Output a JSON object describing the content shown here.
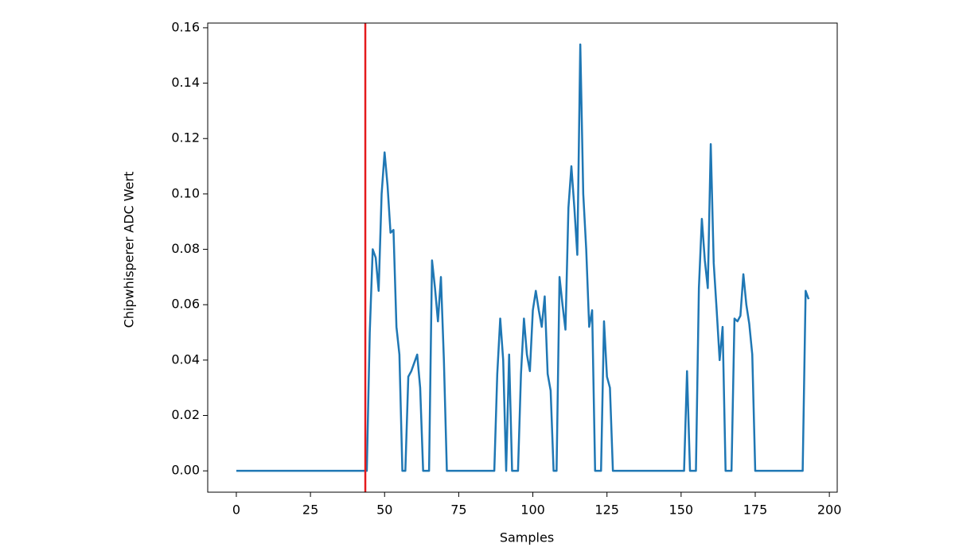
{
  "chart_data": {
    "type": "line",
    "xlabel": "Samples",
    "ylabel": "Chipwhisperer ADC Wert",
    "x": [
      0,
      1,
      2,
      3,
      4,
      5,
      6,
      7,
      8,
      9,
      10,
      11,
      12,
      13,
      14,
      15,
      16,
      17,
      18,
      19,
      20,
      21,
      22,
      23,
      24,
      25,
      26,
      27,
      28,
      29,
      30,
      31,
      32,
      33,
      34,
      35,
      36,
      37,
      38,
      39,
      40,
      41,
      42,
      43,
      44,
      45,
      46,
      47,
      48,
      49,
      50,
      51,
      52,
      53,
      54,
      55,
      56,
      57,
      58,
      59,
      60,
      61,
      62,
      63,
      64,
      65,
      66,
      67,
      68,
      69,
      70,
      71,
      72,
      73,
      74,
      75,
      76,
      77,
      78,
      79,
      80,
      81,
      82,
      83,
      84,
      85,
      86,
      87,
      88,
      89,
      90,
      91,
      92,
      93,
      94,
      95,
      96,
      97,
      98,
      99,
      100,
      101,
      102,
      103,
      104,
      105,
      106,
      107,
      108,
      109,
      110,
      111,
      112,
      113,
      114,
      115,
      116,
      117,
      118,
      119,
      120,
      121,
      122,
      123,
      124,
      125,
      126,
      127,
      128,
      129,
      130,
      131,
      132,
      133,
      134,
      135,
      136,
      137,
      138,
      139,
      140,
      141,
      142,
      143,
      144,
      145,
      146,
      147,
      148,
      149,
      150,
      151,
      152,
      153,
      154,
      155,
      156,
      157,
      158,
      159,
      160,
      161,
      162,
      163,
      164,
      165,
      166,
      167,
      168,
      169,
      170,
      171,
      172,
      173,
      174,
      175,
      176,
      177,
      178,
      179,
      180,
      181,
      182,
      183,
      184,
      185,
      186,
      187,
      188,
      189,
      190,
      191,
      192,
      193
    ],
    "series": [
      {
        "color": "#1f77b4",
        "values": [
          0,
          0,
          0,
          0,
          0,
          0,
          0,
          0,
          0,
          0,
          0,
          0,
          0,
          0,
          0,
          0,
          0,
          0,
          0,
          0,
          0,
          0,
          0,
          0,
          0,
          0,
          0,
          0,
          0,
          0,
          0,
          0,
          0,
          0,
          0,
          0,
          0,
          0,
          0,
          0,
          0,
          0,
          0,
          0,
          0,
          0.05,
          0.08,
          0.077,
          0.065,
          0.1,
          0.115,
          0.103,
          0.086,
          0.087,
          0.052,
          0.042,
          0,
          0,
          0.034,
          0.036,
          0.039,
          0.042,
          0.03,
          0,
          0,
          0,
          0.076,
          0.066,
          0.054,
          0.07,
          0.04,
          0,
          0,
          0,
          0,
          0,
          0,
          0,
          0,
          0,
          0,
          0,
          0,
          0,
          0,
          0,
          0,
          0,
          0.035,
          0.055,
          0.04,
          0,
          0.042,
          0,
          0,
          0,
          0.035,
          0.055,
          0.042,
          0.036,
          0.058,
          0.065,
          0.058,
          0.052,
          0.063,
          0.035,
          0.029,
          0,
          0,
          0.07,
          0.06,
          0.051,
          0.095,
          0.11,
          0.095,
          0.078,
          0.154,
          0.1,
          0.08,
          0.052,
          0.058,
          0,
          0,
          0,
          0.054,
          0.034,
          0.03,
          0,
          0,
          0,
          0,
          0,
          0,
          0,
          0,
          0,
          0,
          0,
          0,
          0,
          0,
          0,
          0,
          0,
          0,
          0,
          0,
          0,
          0,
          0,
          0,
          0,
          0.036,
          0,
          0,
          0,
          0.066,
          0.091,
          0.076,
          0.066,
          0.118,
          0.075,
          0.058,
          0.04,
          0.052,
          0,
          0,
          0,
          0.055,
          0.054,
          0.056,
          0.071,
          0.06,
          0.053,
          0.042,
          0,
          0,
          0,
          0,
          0,
          0,
          0,
          0,
          0,
          0,
          0,
          0,
          0,
          0,
          0,
          0,
          0,
          0.065,
          0.062
        ]
      }
    ],
    "vline": {
      "x": 43.5,
      "color": "#e41a1c"
    },
    "xlim": [
      -9.65,
      202.65
    ],
    "xticks": [
      0,
      25,
      50,
      75,
      100,
      125,
      150,
      175,
      200
    ],
    "ylim": [
      -0.0077,
      0.1617
    ],
    "yticks": [
      {
        "value": 0,
        "label": "0.00"
      },
      0.02,
      0.04,
      0.06,
      0.08,
      {
        "value": 0.1,
        "label": "0.10"
      },
      0.12,
      0.14,
      0.16
    ]
  }
}
